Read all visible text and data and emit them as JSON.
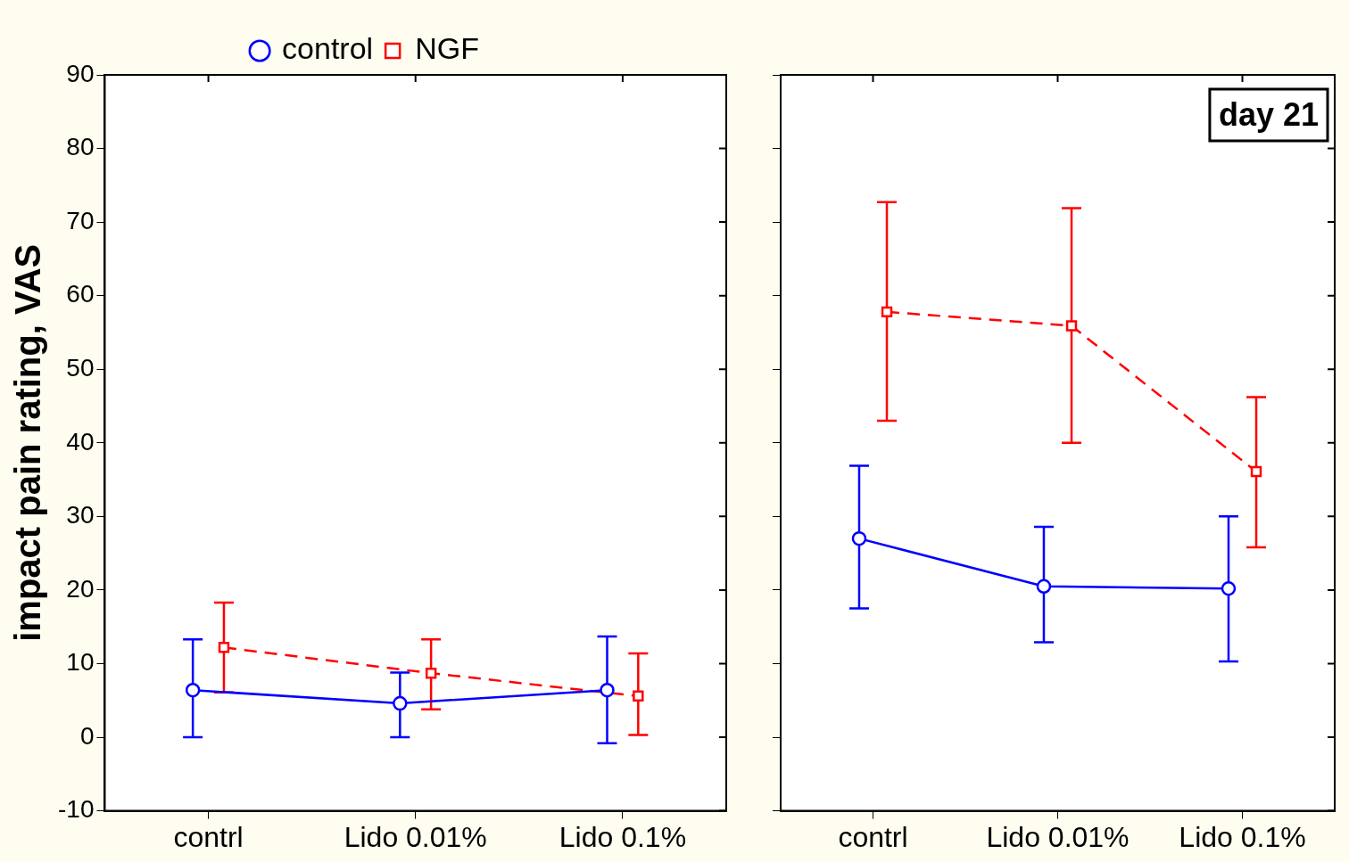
{
  "chart_data": [
    {
      "type": "line",
      "ylabel": "impact pain rating, VAS",
      "categories": [
        "contrl",
        "Lido 0.01%",
        "Lido 0.1%"
      ],
      "ylim": [
        -10,
        90
      ],
      "yticks": [
        -10,
        0,
        10,
        20,
        30,
        40,
        50,
        60,
        70,
        80,
        90
      ],
      "grid": false,
      "legend": "top",
      "series": [
        {
          "name": "control",
          "color": "#0000ff",
          "marker": "circle",
          "line_style": "solid",
          "values": [
            6.4,
            4.6,
            6.4
          ],
          "errors": [
            [
              0,
              13.3
            ],
            [
              0,
              8.8
            ],
            [
              -0.8,
              13.7
            ]
          ]
        },
        {
          "name": "NGF",
          "color": "#ff0000",
          "marker": "square",
          "line_style": "dashed",
          "values": [
            12.2,
            8.7,
            5.6
          ],
          "errors": [
            [
              6.1,
              18.3
            ],
            [
              3.8,
              13.3
            ],
            [
              0.3,
              11.4
            ]
          ]
        }
      ]
    },
    {
      "type": "line",
      "annotations": [
        "day 21"
      ],
      "categories": [
        "contrl",
        "Lido 0.01%",
        "Lido 0.1%"
      ],
      "ylim": [
        -10,
        90
      ],
      "yticks": [
        -10,
        0,
        10,
        20,
        30,
        40,
        50,
        60,
        70,
        80,
        90
      ],
      "tick_labels": "x",
      "grid": false,
      "series": [
        {
          "color": "#0000ff",
          "marker": "circle",
          "line_style": "solid",
          "values": [
            27.0,
            20.5,
            20.2
          ],
          "errors": [
            [
              17.5,
              36.9
            ],
            [
              12.9,
              28.6
            ],
            [
              10.3,
              30.0
            ]
          ]
        },
        {
          "color": "#ff0000",
          "marker": "square",
          "line_style": "dashed",
          "values": [
            57.8,
            55.9,
            36.1
          ],
          "errors": [
            [
              43.0,
              72.7
            ],
            [
              40.0,
              71.9
            ],
            [
              25.8,
              46.2
            ]
          ]
        }
      ]
    }
  ]
}
